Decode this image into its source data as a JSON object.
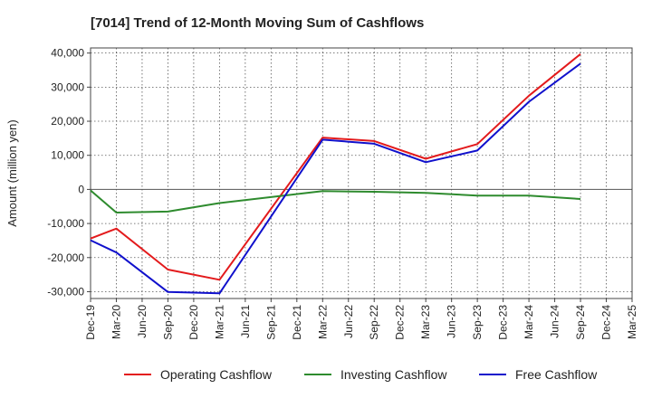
{
  "chart_data": {
    "type": "line",
    "title": "[7014]  Trend of 12-Month Moving Sum of Cashflows",
    "xlabel": "",
    "ylabel": "Amount (million yen)",
    "categories": [
      "Dec-19",
      "Mar-20",
      "Jun-20",
      "Sep-20",
      "Dec-20",
      "Mar-21",
      "Jun-21",
      "Sep-21",
      "Dec-21",
      "Mar-22",
      "Jun-22",
      "Sep-22",
      "Dec-22",
      "Mar-23",
      "Jun-23",
      "Sep-23",
      "Dec-23",
      "Mar-24",
      "Jun-24",
      "Sep-24",
      "Dec-24",
      "Mar-25"
    ],
    "yticks": [
      40000,
      30000,
      20000,
      10000,
      0,
      -10000,
      -20000,
      -30000
    ],
    "ytick_labels": [
      "40,000",
      "30,000",
      "20,000",
      "10,000",
      "0",
      "-10,000",
      "-20,000",
      "-30,000"
    ],
    "ylim": [
      -32000,
      41500
    ],
    "grid": true,
    "legend_position": "bottom",
    "series": [
      {
        "name": "Operating Cashflow",
        "color": "#e31a1c",
        "values": [
          -14400,
          -11500,
          null,
          -23500,
          null,
          -26500,
          null,
          null,
          null,
          15200,
          null,
          14200,
          null,
          9000,
          null,
          13300,
          null,
          27500,
          null,
          39700,
          null,
          null
        ]
      },
      {
        "name": "Investing Cashflow",
        "color": "#2e8b2e",
        "values": [
          -300,
          -6800,
          null,
          -6500,
          null,
          -4000,
          null,
          null,
          null,
          -500,
          null,
          -700,
          null,
          -1000,
          null,
          -1800,
          null,
          -1800,
          null,
          -2800,
          null,
          null
        ]
      },
      {
        "name": "Free Cashflow",
        "color": "#1010cc",
        "values": [
          -14900,
          -18500,
          null,
          -30100,
          null,
          -30500,
          null,
          null,
          null,
          14600,
          null,
          13400,
          null,
          8000,
          null,
          11400,
          null,
          25700,
          null,
          36900,
          null,
          null
        ]
      }
    ]
  }
}
